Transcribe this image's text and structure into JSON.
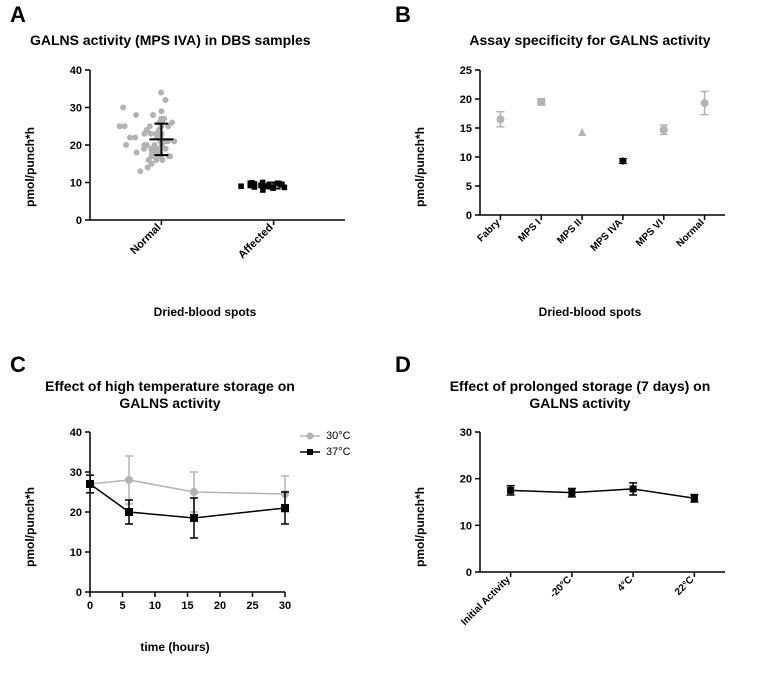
{
  "panelA": {
    "label": "A",
    "title": "GALNS activity (MPS IVA) in DBS samples",
    "ylabel": "pmol/punch*h",
    "xlabel": "Dried-blood spots",
    "ylim": [
      0,
      40
    ],
    "yticks": [
      0,
      10,
      20,
      30,
      40
    ],
    "categories": [
      "Normal",
      "Affected"
    ],
    "normal_points": [
      28,
      29,
      24,
      23,
      22,
      21,
      32,
      25,
      30,
      17,
      23,
      22,
      25,
      18,
      13,
      27,
      21,
      34,
      19,
      22,
      17,
      20,
      21,
      19,
      20,
      17,
      18,
      24,
      22,
      25,
      26,
      27,
      19,
      21,
      18,
      16,
      17,
      25,
      20,
      16,
      14,
      23,
      20,
      22,
      19,
      21,
      24,
      26,
      17,
      18,
      26,
      15,
      16,
      28,
      20,
      19,
      23,
      25
    ],
    "normal_mean": 21.5,
    "normal_sd": 4.2,
    "affected_points": [
      10,
      9.5,
      9,
      9.8,
      9.2,
      8.8,
      9.3,
      9.7,
      8,
      9.1,
      9.0,
      9.6,
      9.4,
      9.9,
      8.5,
      8.7,
      9.5,
      9.2,
      9.8
    ],
    "affected_mean": 9.2,
    "affected_sd": 0.8,
    "normal_color": "#b3b3b3",
    "affected_color": "#000000",
    "axis_color": "#000000",
    "plot_bg": "#ffffff"
  },
  "panelB": {
    "label": "B",
    "title": "Assay specificity for GALNS activity",
    "ylabel": "pmol/punch*h",
    "xlabel": "Dried-blood spots",
    "ylim": [
      0,
      25
    ],
    "yticks": [
      0,
      5,
      10,
      15,
      20,
      25
    ],
    "categories": [
      "Fabry",
      "MPS I",
      "MPS II",
      "MPS IVA",
      "MPS VI",
      "Normal"
    ],
    "series": [
      {
        "name": "Fabry",
        "value": 16.5,
        "err": 1.3,
        "marker": "circle",
        "color": "#b3b3b3"
      },
      {
        "name": "MPS I",
        "value": 19.5,
        "err": 0,
        "marker": "square",
        "color": "#b3b3b3"
      },
      {
        "name": "MPS II",
        "value": 14.3,
        "err": 0,
        "marker": "triangle",
        "color": "#b3b3b3"
      },
      {
        "name": "MPS IVA",
        "value": 9.3,
        "err": 0.4,
        "marker": "diamond",
        "color": "#000000"
      },
      {
        "name": "MPS VI",
        "value": 14.7,
        "err": 0.8,
        "marker": "circle",
        "color": "#b3b3b3"
      },
      {
        "name": "Normal",
        "value": 19.3,
        "err": 2.0,
        "marker": "circle",
        "color": "#b3b3b3"
      }
    ],
    "axis_color": "#000000"
  },
  "panelC": {
    "label": "C",
    "title": "Effect of high temperature storage on GALNS activity",
    "ylabel": "pmol/punch*h",
    "xlabel": "time (hours)",
    "ylim": [
      0,
      40
    ],
    "yticks": [
      0,
      10,
      20,
      30,
      40
    ],
    "xlim": [
      0,
      30
    ],
    "xticks": [
      0,
      5,
      10,
      15,
      20,
      25,
      30
    ],
    "series30": {
      "label": "30°C",
      "color": "#b3b3b3",
      "marker": "circle",
      "x": [
        0,
        6,
        16,
        30
      ],
      "y": [
        27,
        28,
        25,
        24.5
      ],
      "err": [
        2.2,
        6,
        5,
        4.5
      ]
    },
    "series37": {
      "label": "37°C",
      "color": "#000000",
      "marker": "square",
      "x": [
        0,
        6,
        16,
        30
      ],
      "y": [
        27,
        20,
        18.5,
        21
      ],
      "err": [
        2.2,
        3,
        5,
        4
      ]
    },
    "axis_color": "#000000"
  },
  "panelD": {
    "label": "D",
    "title": "Effect of prolonged storage (7 days) on GALNS activity",
    "ylabel": "pmol/punch*h",
    "xlabel": "",
    "ylim": [
      0,
      30
    ],
    "yticks": [
      0,
      10,
      20,
      30
    ],
    "categories": [
      "Initial Activity",
      "-20°C",
      "4°C",
      "22°C"
    ],
    "series": {
      "color": "#000000",
      "marker": "square",
      "y": [
        17.5,
        17.0,
        17.8,
        15.8
      ],
      "err": [
        1.0,
        0.9,
        1.3,
        0.8
      ]
    },
    "axis_color": "#000000"
  }
}
